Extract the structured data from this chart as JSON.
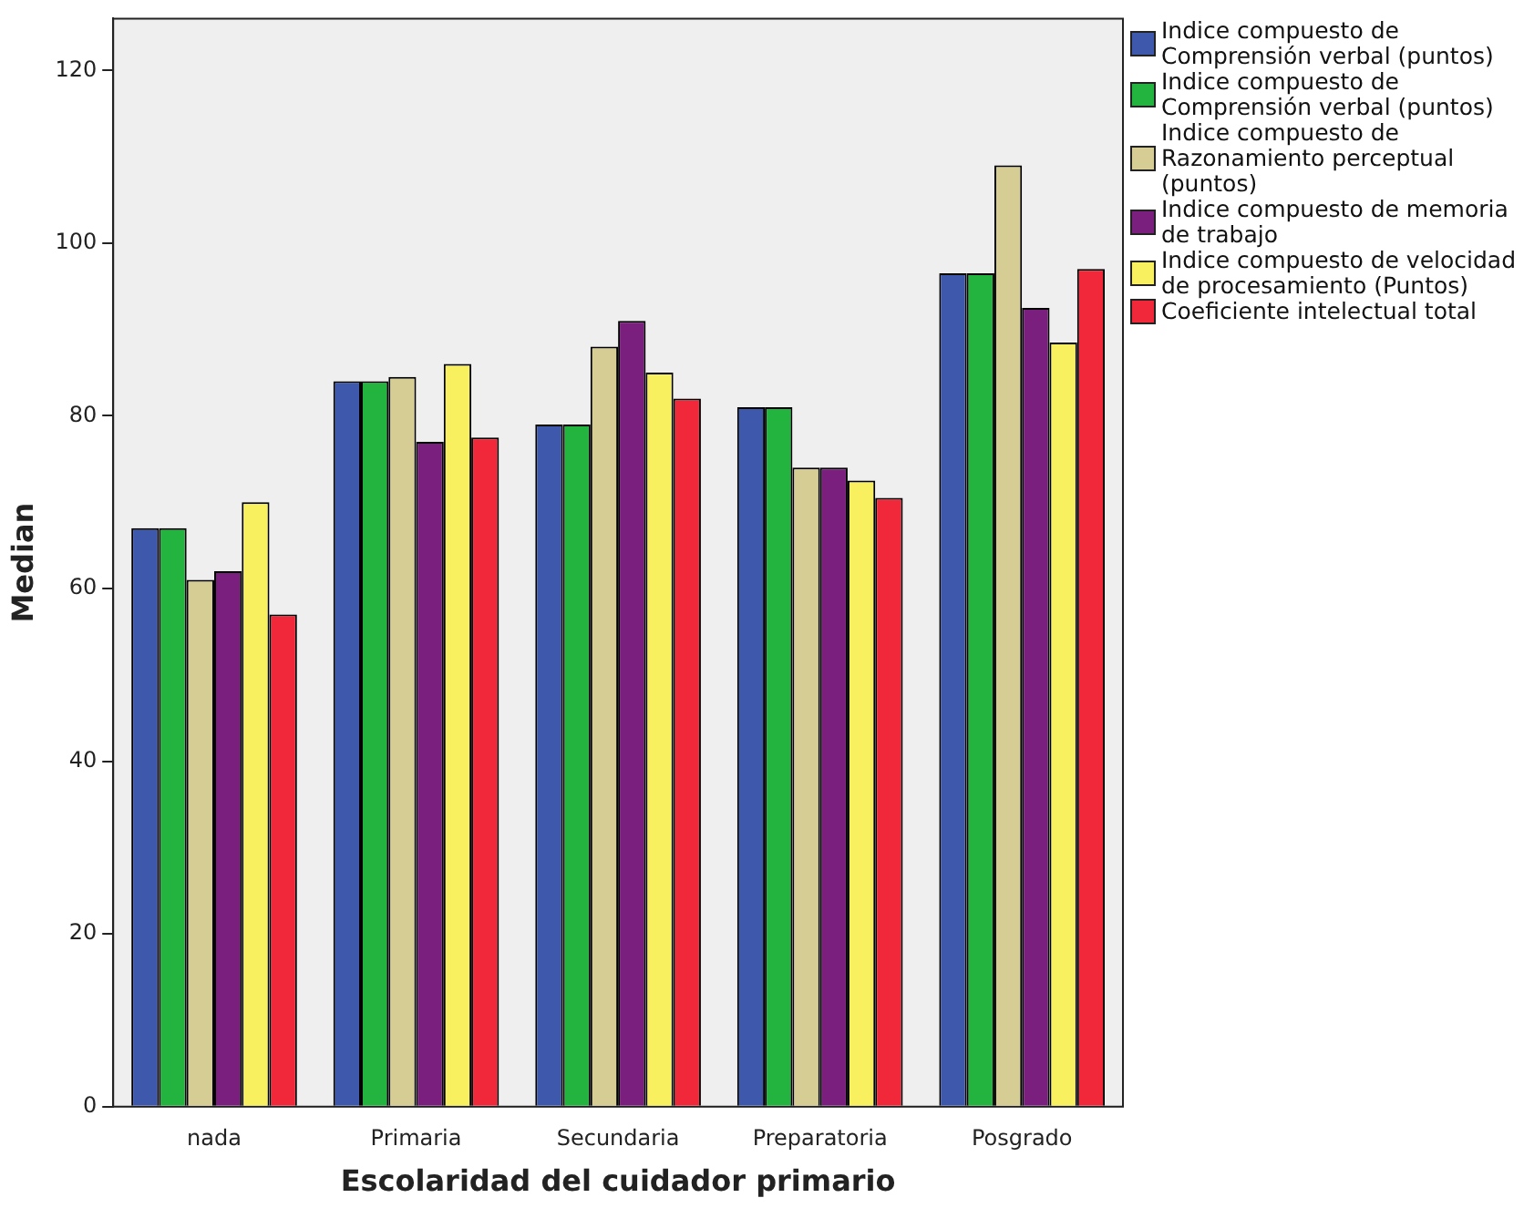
{
  "chart_data": {
    "type": "bar",
    "xlabel": "Escolaridad del cuidador primario",
    "ylabel": "Median",
    "categories": [
      "nada",
      "Primaria",
      "Secundaria",
      "Preparatoria",
      "Posgrado"
    ],
    "series": [
      {
        "name": "Indice compuesto de Comprensión verbal (puntos)",
        "color": "#3e58ac",
        "values": [
          67,
          84,
          79,
          81,
          96.5
        ]
      },
      {
        "name": "Indice compuesto de Comprensión verbal (puntos)",
        "color": "#23b33f",
        "values": [
          67,
          84,
          79,
          81,
          96.5
        ]
      },
      {
        "name": "Indice compuesto de Razonamiento perceptual (puntos)",
        "color": "#d6cd94",
        "values": [
          61,
          84.5,
          88,
          74,
          109
        ]
      },
      {
        "name": "Indice compuesto de memoria de trabajo",
        "color": "#7a1f7d",
        "values": [
          62,
          77,
          91,
          74,
          92.5
        ]
      },
      {
        "name": "Indice compuesto de velocidad de procesamiento (Puntos)",
        "color": "#f9f060",
        "values": [
          70,
          86,
          85,
          72.5,
          88.5
        ]
      },
      {
        "name": "Coeficiente intelectual total",
        "color": "#f0283a",
        "values": [
          57,
          77.5,
          82,
          70.5,
          97
        ]
      }
    ],
    "ylim": [
      0,
      126
    ],
    "yticks": [
      0,
      20,
      40,
      60,
      80,
      100,
      120
    ],
    "grid": false,
    "legend": "right"
  }
}
